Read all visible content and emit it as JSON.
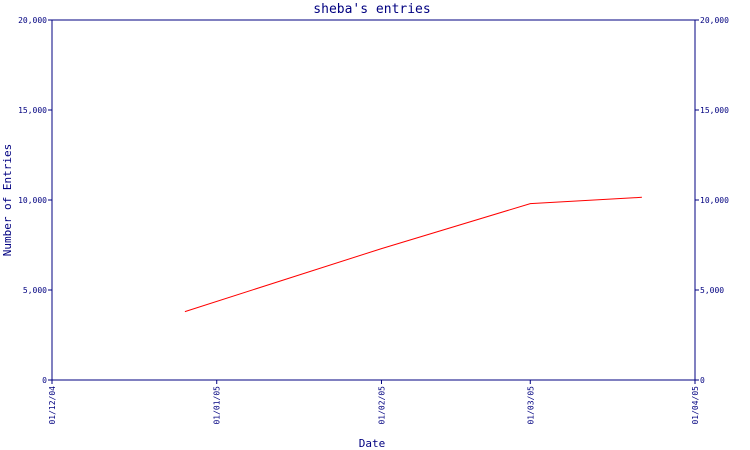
{
  "chart_data": {
    "type": "line",
    "title": "sheba's entries",
    "xlabel": "Date",
    "ylabel": "Number of Entries",
    "x_ticks": [
      {
        "label": "01/12/04",
        "date": "2004-12-01"
      },
      {
        "label": "01/01/05",
        "date": "2005-01-01"
      },
      {
        "label": "01/02/05",
        "date": "2005-02-01"
      },
      {
        "label": "01/03/05",
        "date": "2005-03-01"
      },
      {
        "label": "01/04/05",
        "date": "2005-04-01"
      }
    ],
    "xlim": [
      "2004-12-01",
      "2005-04-01"
    ],
    "ylim": [
      0,
      20000
    ],
    "y_ticks": [
      0,
      5000,
      10000,
      15000,
      20000
    ],
    "y_tick_labels": [
      "0",
      "5,000",
      "10,000",
      "15,000",
      "20,000"
    ],
    "grid": false,
    "series": [
      {
        "color": "#ff0000",
        "points": [
          {
            "x": "2004-12-26",
            "y": 3800
          },
          {
            "x": "2005-02-01",
            "y": 7300
          },
          {
            "x": "2005-03-01",
            "y": 9800
          },
          {
            "x": "2005-03-22",
            "y": 10150
          }
        ]
      }
    ],
    "colors": {
      "axes": "#000080",
      "line": "#ff0000",
      "background": "#ffffff"
    }
  }
}
